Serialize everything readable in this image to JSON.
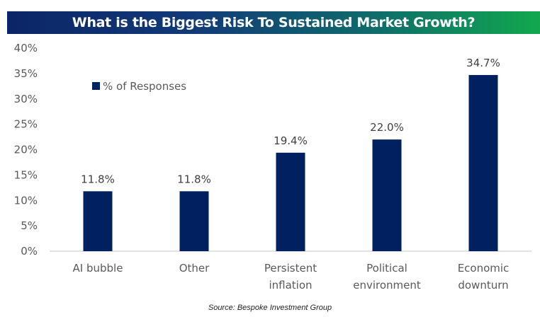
{
  "chart_data": {
    "type": "bar",
    "title": "What is the Biggest Risk To Sustained Market Growth?",
    "categories": [
      [
        "AI bubble"
      ],
      [
        "Other"
      ],
      [
        "Persistent",
        "inflation"
      ],
      [
        "Political",
        "environment"
      ],
      [
        "Economic",
        "downturn"
      ]
    ],
    "series": [
      {
        "name": "% of Responses",
        "values": [
          11.8,
          11.8,
          19.4,
          22.0,
          34.7
        ],
        "color": "#002060"
      }
    ],
    "data_labels": [
      "11.8%",
      "11.8%",
      "19.4%",
      "22.0%",
      "34.7%"
    ],
    "xlabel": "",
    "ylabel": "",
    "ylim": [
      0,
      40
    ],
    "yticks": [
      0,
      5,
      10,
      15,
      20,
      25,
      30,
      35,
      40
    ],
    "ytick_labels": [
      "0%",
      "5%",
      "10%",
      "15%",
      "20%",
      "25%",
      "30%",
      "35%",
      "40%"
    ],
    "grid": false,
    "legend": {
      "entries": [
        "% of Responses"
      ],
      "placement": "top-left"
    },
    "source": "Source: Bespoke Investment Group"
  },
  "colors": {
    "bar": "#002060",
    "title_gradient_start": "#0b2566",
    "title_gradient_end": "#11a84e"
  }
}
